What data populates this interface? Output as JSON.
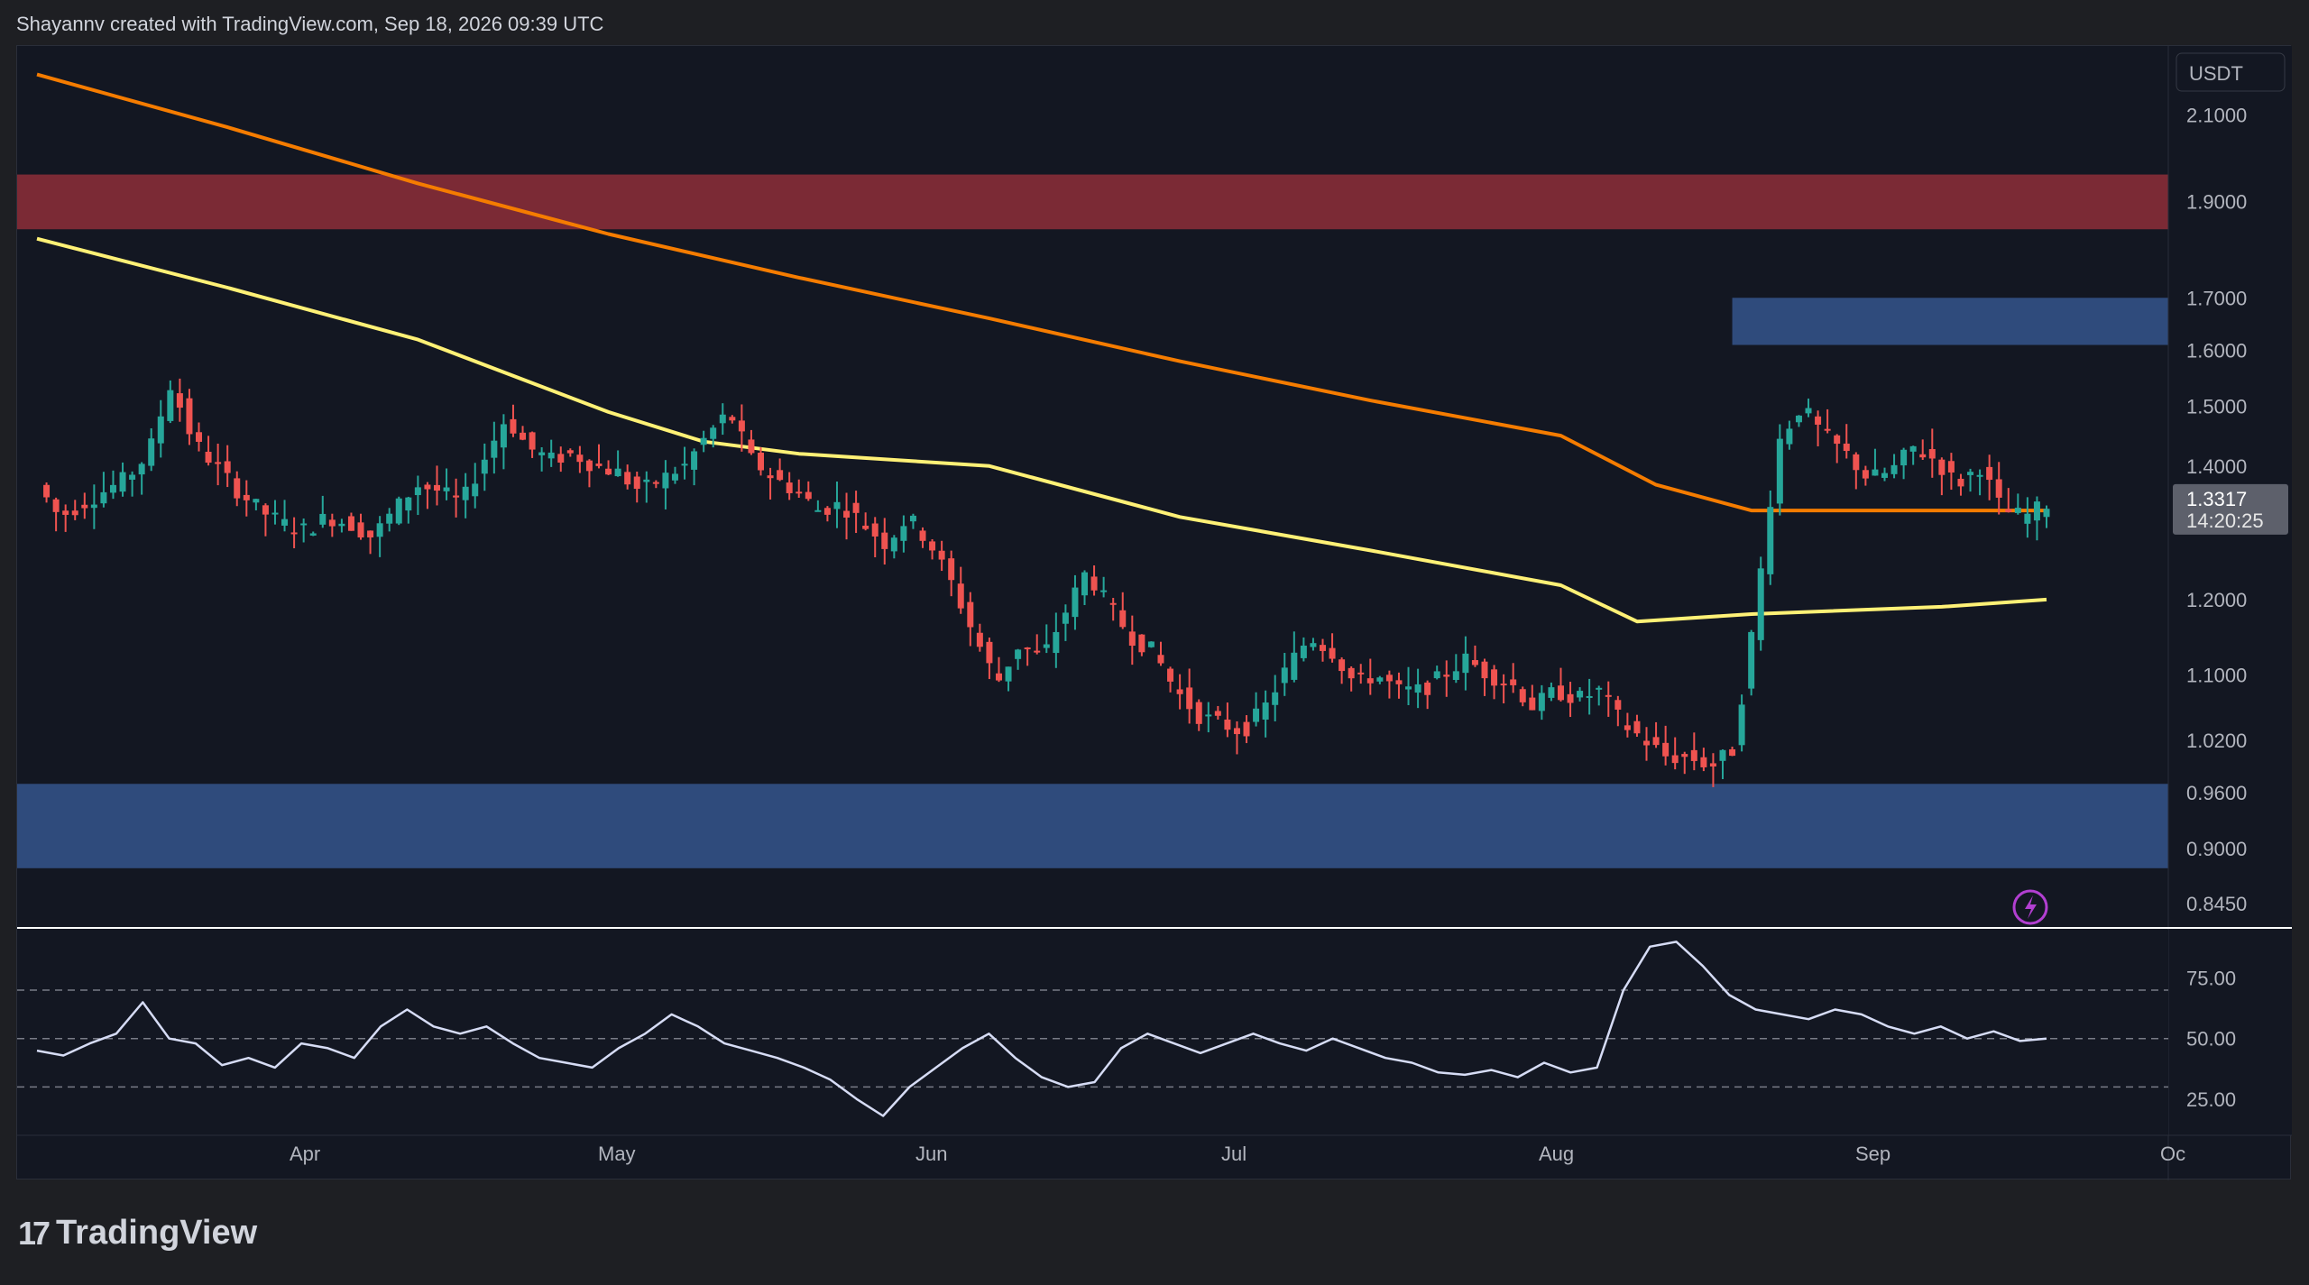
{
  "header": {
    "credit": "Shayannv created with TradingView.com, Sep 18, 2026 09:39 UTC"
  },
  "footer": {
    "brand": "TradingView",
    "brand_mark": "17"
  },
  "colors": {
    "background": "#131722",
    "bull": "#26a69a",
    "bear": "#ef5350",
    "ma_orange": "#f57c00",
    "ma_yellow": "#fff176",
    "supply_zone": "#7b2a35",
    "demand_zone": "#2f4b7c",
    "rsi_line": "#d6dcf5"
  },
  "chart_data": {
    "type": "candlestick",
    "price_axis": {
      "currency_label": "USDT",
      "ticks": [
        "2.1000",
        "1.9000",
        "1.7000",
        "1.6000",
        "1.5000",
        "1.4000",
        "1.2000",
        "1.1000",
        "1.0200",
        "0.9600",
        "0.9000",
        "0.8450"
      ],
      "range": [
        0.83,
        2.25
      ],
      "scale": "log",
      "last_price": "1.3317",
      "countdown": "14:20:25"
    },
    "time_axis": {
      "ticks": [
        "Apr",
        "May",
        "Jun",
        "Jul",
        "Aug",
        "Sep",
        "Oc"
      ]
    },
    "zones": [
      {
        "name": "supply-zone",
        "low": 1.84,
        "high": 1.96
      },
      {
        "name": "upper-blue-zone",
        "low": 1.61,
        "high": 1.7
      },
      {
        "name": "demand-zone",
        "low": 0.88,
        "high": 0.97
      }
    ],
    "moving_averages": [
      {
        "color": "orange",
        "points": [
          [
            0,
            2.2
          ],
          [
            20,
            2.07
          ],
          [
            40,
            1.94
          ],
          [
            60,
            1.83
          ],
          [
            80,
            1.74
          ],
          [
            100,
            1.66
          ],
          [
            120,
            1.58
          ],
          [
            140,
            1.51
          ],
          [
            160,
            1.45
          ],
          [
            170,
            1.37
          ],
          [
            180,
            1.33
          ],
          [
            200,
            1.33
          ],
          [
            211,
            1.33
          ]
        ]
      },
      {
        "color": "yellow",
        "points": [
          [
            0,
            1.82
          ],
          [
            20,
            1.72
          ],
          [
            40,
            1.62
          ],
          [
            60,
            1.49
          ],
          [
            70,
            1.44
          ],
          [
            80,
            1.42
          ],
          [
            100,
            1.4
          ],
          [
            120,
            1.32
          ],
          [
            140,
            1.27
          ],
          [
            160,
            1.22
          ],
          [
            168,
            1.17
          ],
          [
            180,
            1.18
          ],
          [
            200,
            1.19
          ],
          [
            211,
            1.2
          ]
        ]
      }
    ],
    "price_path": [
      1.37,
      1.32,
      1.34,
      1.36,
      1.38,
      1.42,
      1.54,
      1.44,
      1.4,
      1.36,
      1.33,
      1.31,
      1.3,
      1.32,
      1.31,
      1.29,
      1.33,
      1.37,
      1.36,
      1.34,
      1.41,
      1.48,
      1.43,
      1.41,
      1.42,
      1.4,
      1.39,
      1.36,
      1.38,
      1.4,
      1.45,
      1.49,
      1.41,
      1.38,
      1.36,
      1.33,
      1.34,
      1.31,
      1.28,
      1.32,
      1.28,
      1.22,
      1.15,
      1.09,
      1.14,
      1.12,
      1.18,
      1.24,
      1.19,
      1.15,
      1.13,
      1.08,
      1.05,
      1.04,
      1.03,
      1.06,
      1.11,
      1.15,
      1.13,
      1.09,
      1.1,
      1.08,
      1.08,
      1.1,
      1.12,
      1.1,
      1.09,
      1.06,
      1.08,
      1.07,
      1.08,
      1.04,
      1.02,
      1.0,
      1.0,
      0.99,
      1.01,
      1.19,
      1.44,
      1.5,
      1.45,
      1.42,
      1.38,
      1.39,
      1.43,
      1.41,
      1.37,
      1.4,
      1.33,
      1.32,
      1.34
    ],
    "rsi": {
      "levels": [
        "75.00",
        "50.00",
        "25.00"
      ],
      "range": [
        10,
        95
      ],
      "band": [
        30,
        70
      ],
      "path": [
        45,
        43,
        48,
        52,
        65,
        50,
        48,
        39,
        42,
        38,
        48,
        46,
        42,
        55,
        62,
        55,
        52,
        55,
        48,
        42,
        40,
        38,
        46,
        52,
        60,
        55,
        48,
        45,
        42,
        38,
        33,
        25,
        18,
        30,
        38,
        46,
        52,
        42,
        34,
        30,
        32,
        46,
        52,
        48,
        44,
        48,
        52,
        48,
        45,
        50,
        46,
        42,
        40,
        36,
        35,
        37,
        34,
        40,
        36,
        38,
        70,
        88,
        90,
        80,
        68,
        62,
        60,
        58,
        62,
        60,
        55,
        52,
        55,
        50,
        53,
        49,
        50
      ]
    }
  }
}
